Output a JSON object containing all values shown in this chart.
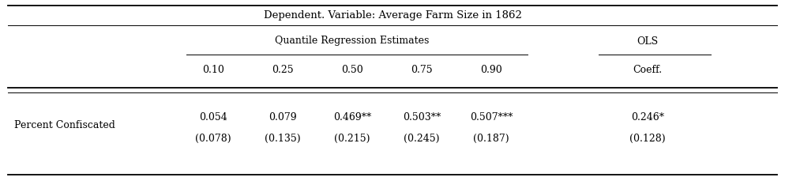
{
  "title": "Dependent. Variable: Average Farm Size in 1862",
  "group_header": "Quantile Regression Estimates",
  "ols_header": "OLS",
  "quantile_cols": [
    "0.10",
    "0.25",
    "0.50",
    "0.75",
    "0.90"
  ],
  "ols_col": "Coeff.",
  "row_label": "Percent Confiscated",
  "coef_values": [
    "0.054",
    "0.079",
    "0.469**",
    "0.503**",
    "0.507***",
    "0.246*"
  ],
  "se_values": [
    "(0.078)",
    "(0.135)",
    "(0.215)",
    "(0.245)",
    "(0.187)",
    "(0.128)"
  ],
  "font_size": 9.0,
  "title_font_size": 9.5,
  "bg_color": "#ffffff",
  "text_color": "#000000"
}
